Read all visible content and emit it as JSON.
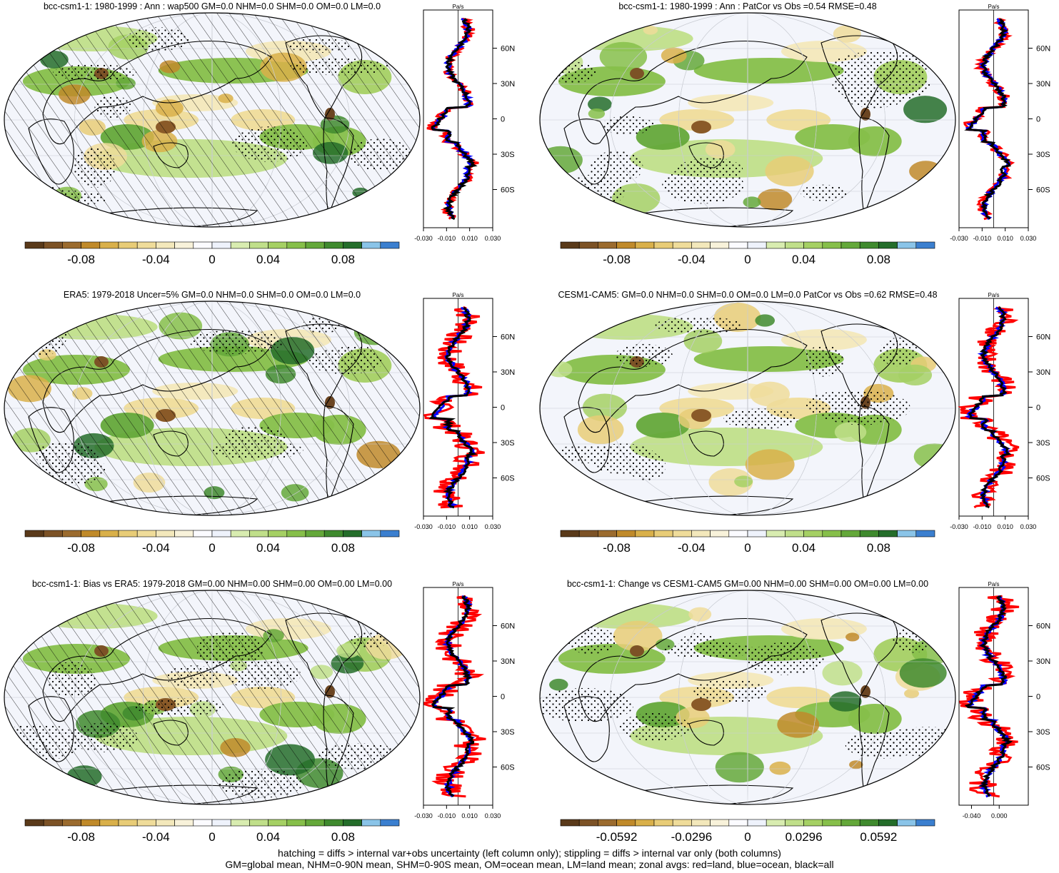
{
  "colors": {
    "land": "#ff0000",
    "ocean": "#0000ff",
    "all": "#000000",
    "palette": [
      "#5a3a1a",
      "#7c5226",
      "#9b6b2e",
      "#c08a2a",
      "#d9b04a",
      "#e8cc77",
      "#efdc9a",
      "#f3e8bb",
      "#f8f2da",
      "#fbfbff",
      "#eef2fb",
      "#d8ecb0",
      "#c0df8a",
      "#a5d064",
      "#86bf4a",
      "#64a83a",
      "#3f8a2e",
      "#246d2a",
      "#8ac4e8",
      "#3b7fcf"
    ]
  },
  "panels": [
    {
      "id": "p1",
      "title": "bcc-csm1-1: 1980-1999 : Ann : wap500 GM=0.0 NHM=0.0 SHM=0.0 OM=0.0 LM=0.0",
      "hatch": true,
      "colorbar_labels": [
        "-0.08",
        "-0.04",
        "0",
        "0.04",
        "0.08"
      ],
      "profile_xticks": [
        "-0.030",
        "-0.010",
        "0.010",
        "0.030"
      ]
    },
    {
      "id": "p2",
      "title": "bcc-csm1-1: 1980-1999 : Ann : PatCor vs Obs =0.54 RMSE=0.48",
      "hatch": false,
      "colorbar_labels": [
        "-0.08",
        "-0.04",
        "0",
        "0.04",
        "0.08"
      ],
      "profile_xticks": [
        "-0.030",
        "-0.010",
        "0.010",
        "0.030"
      ]
    },
    {
      "id": "p3",
      "title": "ERA5: 1979-2018 Uncer=5% GM=0.0 NHM=0.0 SHM=0.0 OM=0.0 LM=0.0",
      "hatch": true,
      "colorbar_labels": [
        "-0.08",
        "-0.04",
        "0",
        "0.04",
        "0.08"
      ],
      "profile_xticks": [
        "-0.030",
        "-0.010",
        "0.010",
        "0.030"
      ]
    },
    {
      "id": "p4",
      "title": "CESM1-CAM5: GM=0.0 NHM=0.0 SHM=0.0 OM=0.0 LM=0.0 PatCor vs Obs =0.62 RMSE=0.48",
      "hatch": false,
      "colorbar_labels": [
        "-0.08",
        "-0.04",
        "0",
        "0.04",
        "0.08"
      ],
      "profile_xticks": [
        "-0.030",
        "-0.010",
        "0.010",
        "0.030"
      ]
    },
    {
      "id": "p5",
      "title": "bcc-csm1-1: Bias vs ERA5: 1979-2018 GM=0.00 NHM=0.00 SHM=0.00 OM=0.00 LM=0.00",
      "hatch": true,
      "colorbar_labels": [
        "-0.08",
        "-0.04",
        "0",
        "0.04",
        "0.08"
      ],
      "profile_xticks": [
        "-0.030",
        "-0.010",
        "0.010",
        "0.030"
      ]
    },
    {
      "id": "p6",
      "title": "bcc-csm1-1: Change vs CESM1-CAM5 GM=0.00 NHM=0.00 SHM=0.00 OM=0.00 LM=0.00",
      "hatch": false,
      "colorbar_labels": [
        "-0.0592",
        "-0.0296",
        "0",
        "0.0296",
        "0.0592"
      ],
      "profile_xticks": [
        "-0.040",
        "0.000"
      ]
    }
  ],
  "profile": {
    "unit": "Pa/s",
    "lat_labels": [
      "60N",
      "30N",
      "0",
      "30S",
      "60S"
    ]
  },
  "footnote": {
    "line1": "hatching = diffs > internal var+obs uncertainty (left column only); stippling = diffs > internal var only (both columns)",
    "line2": "GM=global mean, NHM=0-90N mean, SHM=0-90S mean, OM=ocean mean, LM=land mean; zonal avgs: red=land, blue=ocean, black=all"
  },
  "chart_data": {
    "type": "heatmap",
    "variable": "wap500",
    "unit": "Pa/s",
    "colorbar_bins": 20,
    "profile_lat_ticks": [
      60,
      30,
      0,
      -30,
      -60
    ],
    "profile_series": [
      "land",
      "ocean",
      "all"
    ]
  }
}
